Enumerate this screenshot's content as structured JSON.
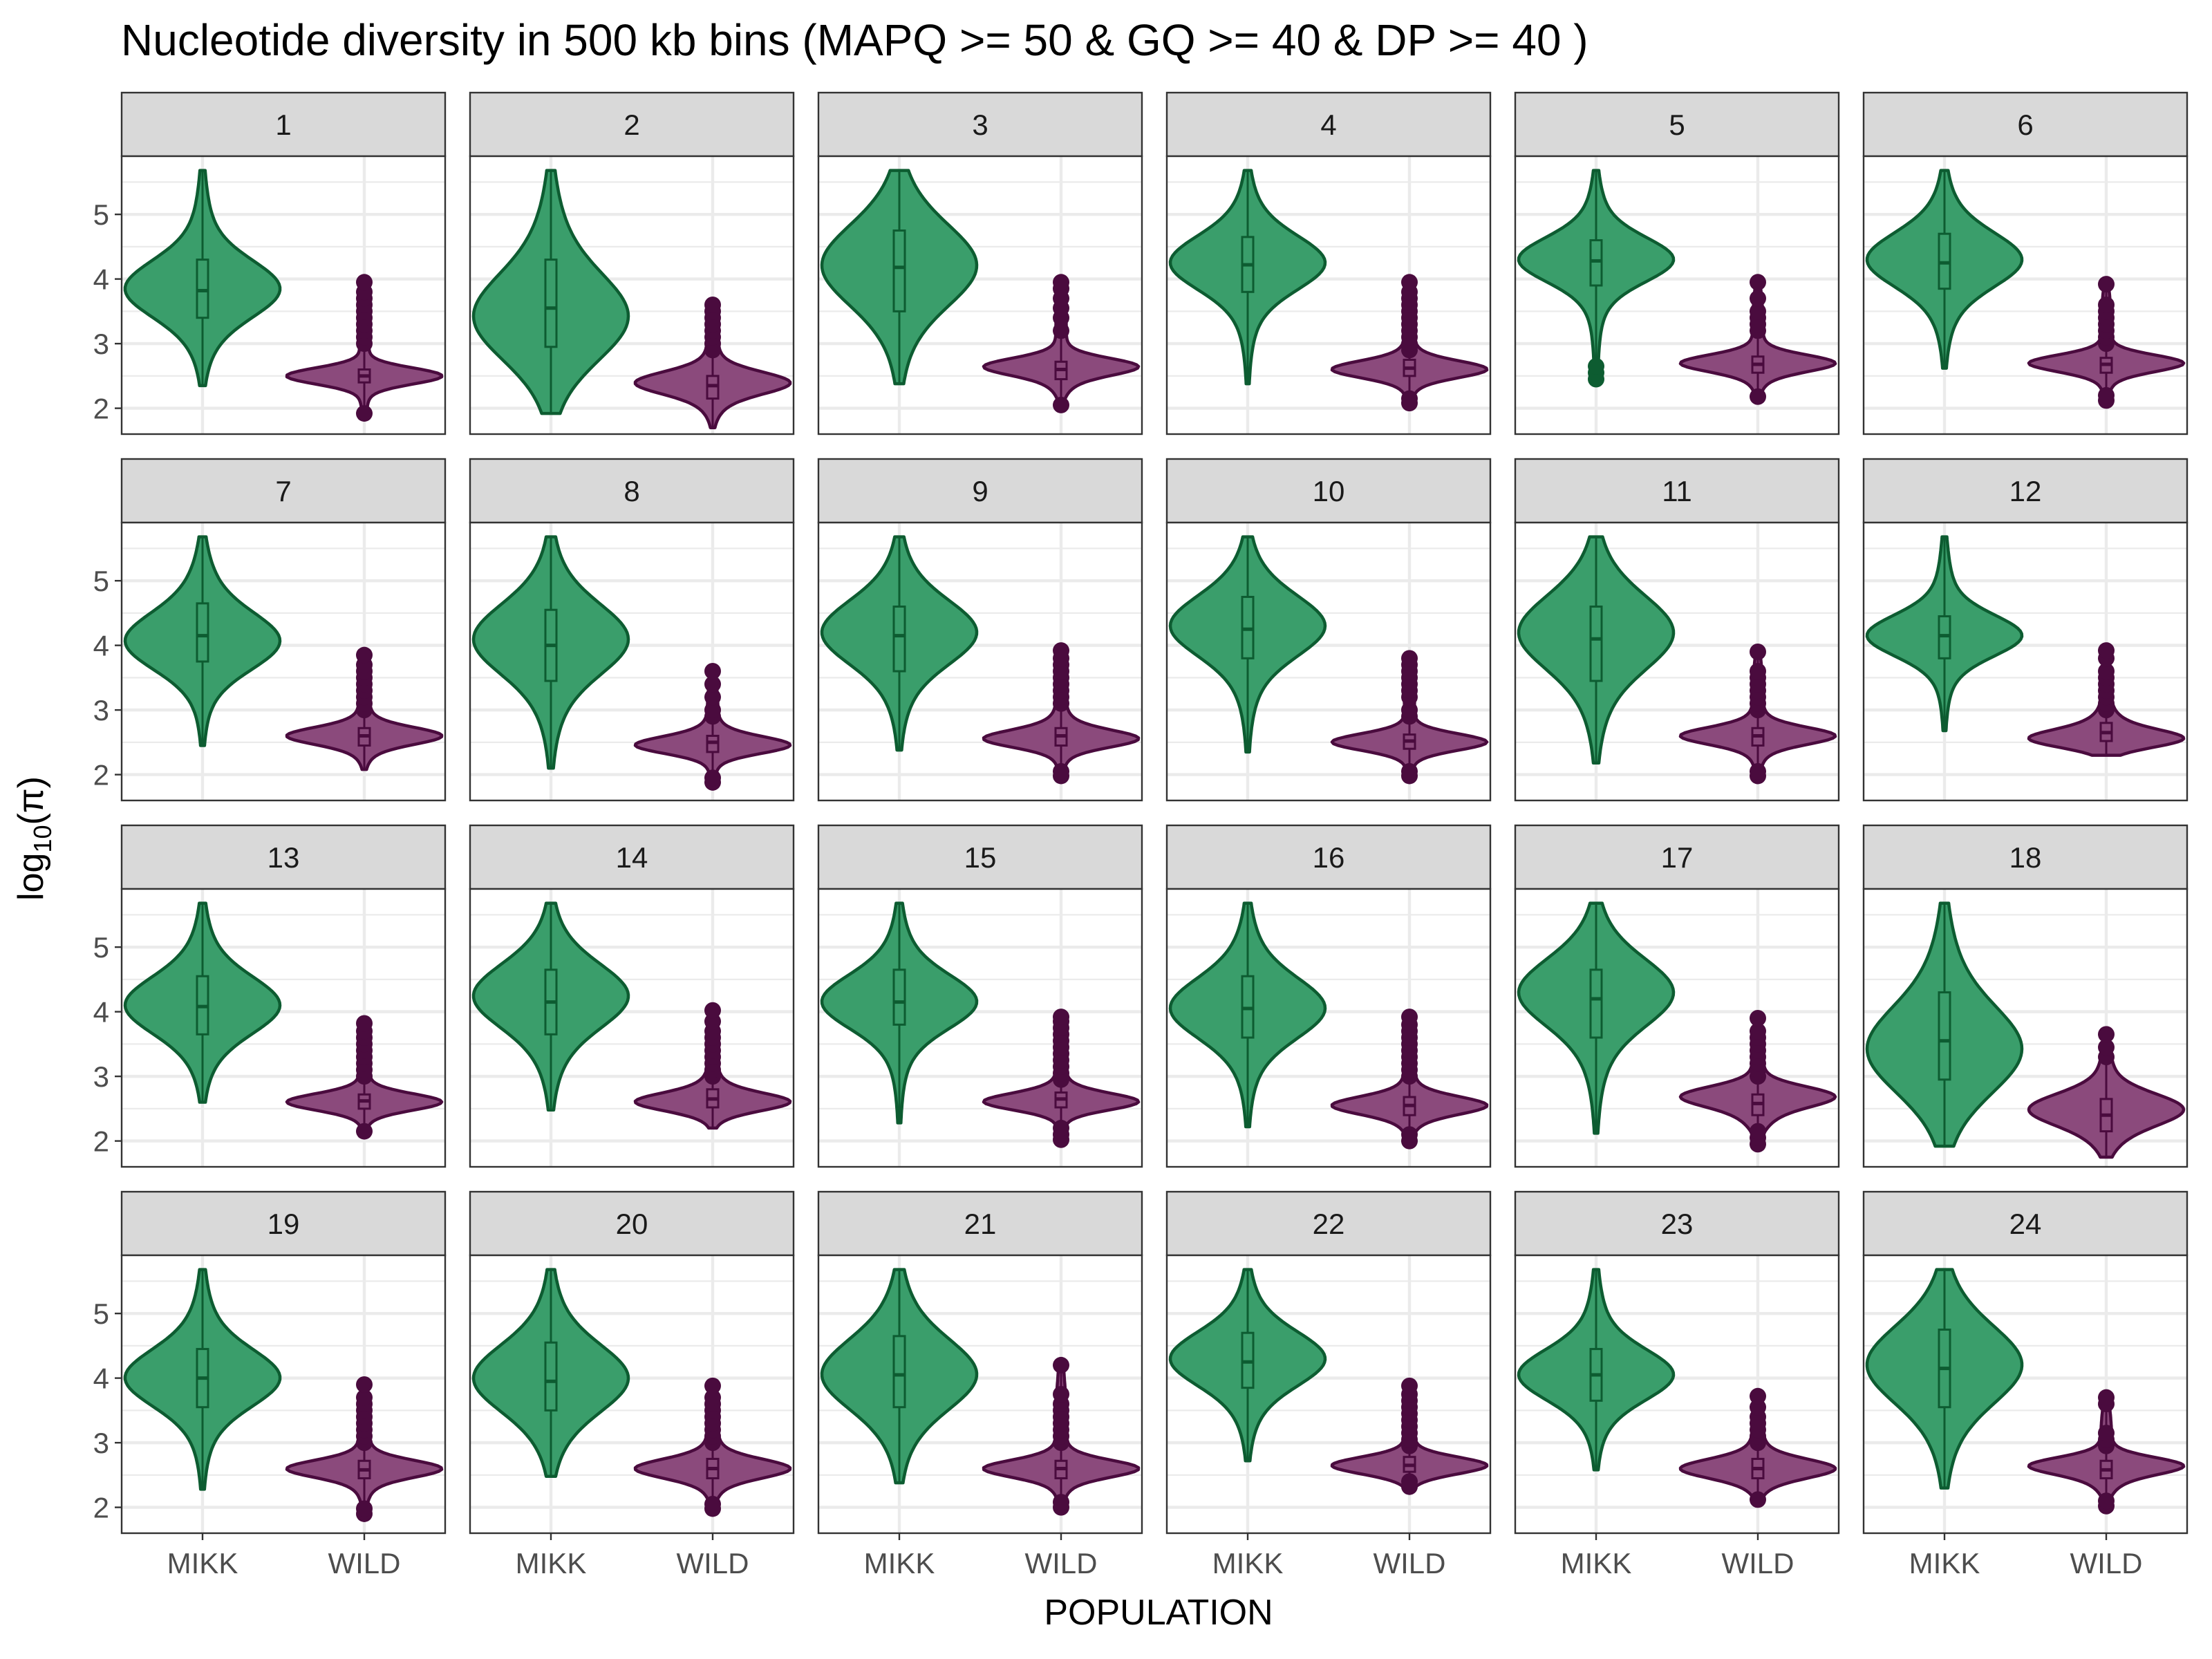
{
  "chart_data": {
    "type": "violin",
    "title": "Nucleotide diversity in 500 kb bins (MAPQ >= 50 & GQ >= 40 & DP >= 40 )",
    "xlabel": "POPULATION",
    "ylabel": "log10(π)",
    "ylabel_parts": {
      "base": "log",
      "subscript": "10",
      "rest": "(π)"
    },
    "categories": [
      "MIKK",
      "WILD"
    ],
    "y_ticks": [
      2,
      3,
      4,
      5
    ],
    "ylim": [
      1.6,
      5.9
    ],
    "grid": true,
    "facet_layout": {
      "rows": 4,
      "cols": 6
    },
    "colors": {
      "MIKK": {
        "fill": "#3a9e6b",
        "line": "#0d5c31"
      },
      "WILD": {
        "fill": "#8b4a7c",
        "line": "#4a0b3e"
      }
    },
    "panels": [
      {
        "label": "1",
        "MIKK": {
          "min": 2.35,
          "q1": 3.4,
          "median": 3.82,
          "q3": 4.3,
          "max": 5.68,
          "mode": 3.85,
          "outliers": []
        },
        "WILD": {
          "min": 1.9,
          "q1": 2.4,
          "median": 2.5,
          "q3": 2.6,
          "max": 3.95,
          "mode": 2.5,
          "outliers": [
            3.0,
            3.1,
            3.2,
            3.3,
            3.4,
            3.5,
            3.6,
            3.7,
            3.8,
            3.95,
            1.92
          ]
        }
      },
      {
        "label": "2",
        "MIKK": {
          "min": 1.92,
          "q1": 2.95,
          "median": 3.55,
          "q3": 4.3,
          "max": 5.68,
          "mode": 3.4,
          "outliers": []
        },
        "WILD": {
          "min": 1.7,
          "q1": 2.15,
          "median": 2.35,
          "q3": 2.5,
          "max": 3.6,
          "mode": 2.4,
          "outliers": [
            2.9,
            3.0,
            3.1,
            3.2,
            3.3,
            3.4,
            3.5,
            3.6
          ]
        }
      },
      {
        "label": "3",
        "MIKK": {
          "min": 2.38,
          "q1": 3.5,
          "median": 4.18,
          "q3": 4.75,
          "max": 5.68,
          "mode": 4.2,
          "outliers": []
        },
        "WILD": {
          "min": 2.05,
          "q1": 2.45,
          "median": 2.6,
          "q3": 2.72,
          "max": 3.95,
          "mode": 2.65,
          "outliers": [
            3.2,
            3.4,
            3.55,
            3.7,
            3.85,
            3.95,
            2.05
          ]
        }
      },
      {
        "label": "4",
        "MIKK": {
          "min": 2.38,
          "q1": 3.8,
          "median": 4.22,
          "q3": 4.65,
          "max": 5.68,
          "mode": 4.25,
          "outliers": []
        },
        "WILD": {
          "min": 2.05,
          "q1": 2.5,
          "median": 2.62,
          "q3": 2.75,
          "max": 3.95,
          "mode": 2.6,
          "outliers": [
            2.9,
            3.0,
            3.1,
            3.2,
            3.3,
            3.4,
            3.5,
            3.6,
            3.7,
            3.8,
            3.95,
            2.08,
            2.15
          ]
        }
      },
      {
        "label": "5",
        "MIKK": {
          "min": 2.42,
          "q1": 3.9,
          "median": 4.28,
          "q3": 4.6,
          "max": 5.68,
          "mode": 4.3,
          "outliers": [
            2.45,
            2.55,
            2.65
          ]
        },
        "WILD": {
          "min": 2.15,
          "q1": 2.55,
          "median": 2.68,
          "q3": 2.8,
          "max": 3.95,
          "mode": 2.7,
          "outliers": [
            3.2,
            3.3,
            3.4,
            3.5,
            3.7,
            3.95,
            2.18
          ]
        }
      },
      {
        "label": "6",
        "MIKK": {
          "min": 2.62,
          "q1": 3.85,
          "median": 4.25,
          "q3": 4.7,
          "max": 5.68,
          "mode": 4.3,
          "outliers": []
        },
        "WILD": {
          "min": 2.1,
          "q1": 2.55,
          "median": 2.68,
          "q3": 2.78,
          "max": 3.92,
          "mode": 2.7,
          "outliers": [
            3.0,
            3.1,
            3.2,
            3.3,
            3.4,
            3.5,
            3.6,
            3.92,
            2.12,
            2.2
          ]
        }
      },
      {
        "label": "7",
        "MIKK": {
          "min": 2.45,
          "q1": 3.75,
          "median": 4.15,
          "q3": 4.65,
          "max": 5.68,
          "mode": 4.05,
          "outliers": []
        },
        "WILD": {
          "min": 2.08,
          "q1": 2.45,
          "median": 2.6,
          "q3": 2.72,
          "max": 3.85,
          "mode": 2.6,
          "outliers": [
            3.0,
            3.1,
            3.2,
            3.3,
            3.4,
            3.5,
            3.6,
            3.7,
            3.85
          ]
        }
      },
      {
        "label": "8",
        "MIKK": {
          "min": 2.1,
          "q1": 3.45,
          "median": 4.0,
          "q3": 4.55,
          "max": 5.68,
          "mode": 4.1,
          "outliers": []
        },
        "WILD": {
          "min": 1.85,
          "q1": 2.35,
          "median": 2.5,
          "q3": 2.6,
          "max": 3.6,
          "mode": 2.45,
          "outliers": [
            2.9,
            3.0,
            3.2,
            3.4,
            3.6,
            1.88,
            1.95
          ]
        }
      },
      {
        "label": "9",
        "MIKK": {
          "min": 2.38,
          "q1": 3.6,
          "median": 4.15,
          "q3": 4.6,
          "max": 5.68,
          "mode": 4.2,
          "outliers": []
        },
        "WILD": {
          "min": 1.95,
          "q1": 2.45,
          "median": 2.6,
          "q3": 2.72,
          "max": 3.92,
          "mode": 2.55,
          "outliers": [
            3.1,
            3.2,
            3.3,
            3.4,
            3.5,
            3.6,
            3.7,
            3.8,
            3.92,
            1.98,
            2.05
          ]
        }
      },
      {
        "label": "10",
        "MIKK": {
          "min": 2.35,
          "q1": 3.8,
          "median": 4.25,
          "q3": 4.75,
          "max": 5.68,
          "mode": 4.3,
          "outliers": []
        },
        "WILD": {
          "min": 1.95,
          "q1": 2.4,
          "median": 2.52,
          "q3": 2.62,
          "max": 3.8,
          "mode": 2.5,
          "outliers": [
            2.9,
            3.0,
            3.2,
            3.3,
            3.4,
            3.5,
            3.6,
            3.7,
            3.8,
            1.98,
            2.05
          ]
        }
      },
      {
        "label": "11",
        "MIKK": {
          "min": 2.18,
          "q1": 3.45,
          "median": 4.1,
          "q3": 4.6,
          "max": 5.68,
          "mode": 4.2,
          "outliers": []
        },
        "WILD": {
          "min": 1.95,
          "q1": 2.45,
          "median": 2.6,
          "q3": 2.72,
          "max": 3.9,
          "mode": 2.6,
          "outliers": [
            3.0,
            3.1,
            3.2,
            3.3,
            3.4,
            3.5,
            3.6,
            3.9,
            1.98,
            2.05
          ]
        }
      },
      {
        "label": "12",
        "MIKK": {
          "min": 2.68,
          "q1": 3.8,
          "median": 4.15,
          "q3": 4.45,
          "max": 5.68,
          "mode": 4.15,
          "outliers": []
        },
        "WILD": {
          "min": 2.3,
          "q1": 2.52,
          "median": 2.65,
          "q3": 2.8,
          "max": 3.92,
          "mode": 2.55,
          "outliers": [
            3.0,
            3.1,
            3.2,
            3.3,
            3.4,
            3.5,
            3.6,
            3.8,
            3.92
          ]
        }
      },
      {
        "label": "13",
        "MIKK": {
          "min": 2.6,
          "q1": 3.65,
          "median": 4.08,
          "q3": 4.55,
          "max": 5.68,
          "mode": 4.1,
          "outliers": []
        },
        "WILD": {
          "min": 2.12,
          "q1": 2.5,
          "median": 2.62,
          "q3": 2.72,
          "max": 3.82,
          "mode": 2.6,
          "outliers": [
            3.0,
            3.1,
            3.2,
            3.3,
            3.4,
            3.5,
            3.6,
            3.7,
            3.82,
            2.15
          ]
        }
      },
      {
        "label": "14",
        "MIKK": {
          "min": 2.48,
          "q1": 3.65,
          "median": 4.15,
          "q3": 4.65,
          "max": 5.68,
          "mode": 4.25,
          "outliers": []
        },
        "WILD": {
          "min": 2.2,
          "q1": 2.52,
          "median": 2.65,
          "q3": 2.8,
          "max": 4.02,
          "mode": 2.6,
          "outliers": [
            3.0,
            3.1,
            3.2,
            3.3,
            3.4,
            3.5,
            3.6,
            3.7,
            3.85,
            4.02
          ]
        }
      },
      {
        "label": "15",
        "MIKK": {
          "min": 2.28,
          "q1": 3.8,
          "median": 4.15,
          "q3": 4.65,
          "max": 5.68,
          "mode": 4.15,
          "outliers": []
        },
        "WILD": {
          "min": 2.0,
          "q1": 2.52,
          "median": 2.65,
          "q3": 2.75,
          "max": 3.92,
          "mode": 2.6,
          "outliers": [
            2.95,
            3.05,
            3.15,
            3.25,
            3.35,
            3.45,
            3.55,
            3.65,
            3.75,
            3.85,
            3.92,
            2.02,
            2.1,
            2.2
          ]
        }
      },
      {
        "label": "16",
        "MIKK": {
          "min": 2.22,
          "q1": 3.6,
          "median": 4.05,
          "q3": 4.55,
          "max": 5.68,
          "mode": 4.05,
          "outliers": []
        },
        "WILD": {
          "min": 1.98,
          "q1": 2.4,
          "median": 2.55,
          "q3": 2.68,
          "max": 3.92,
          "mode": 2.55,
          "outliers": [
            3.0,
            3.1,
            3.2,
            3.3,
            3.4,
            3.5,
            3.6,
            3.7,
            3.8,
            3.92,
            2.0,
            2.1
          ]
        }
      },
      {
        "label": "17",
        "MIKK": {
          "min": 2.12,
          "q1": 3.6,
          "median": 4.2,
          "q3": 4.65,
          "max": 5.68,
          "mode": 4.3,
          "outliers": []
        },
        "WILD": {
          "min": 1.92,
          "q1": 2.4,
          "median": 2.58,
          "q3": 2.72,
          "max": 3.9,
          "mode": 2.7,
          "outliers": [
            3.0,
            3.1,
            3.2,
            3.3,
            3.4,
            3.5,
            3.6,
            3.7,
            3.9,
            1.95,
            2.05,
            2.15
          ]
        }
      },
      {
        "label": "18",
        "MIKK": {
          "min": 1.92,
          "q1": 2.95,
          "median": 3.55,
          "q3": 4.3,
          "max": 5.68,
          "mode": 3.4,
          "outliers": []
        },
        "WILD": {
          "min": 1.75,
          "q1": 2.15,
          "median": 2.4,
          "q3": 2.65,
          "max": 3.65,
          "mode": 2.5,
          "outliers": [
            3.3,
            3.45,
            3.65
          ]
        }
      },
      {
        "label": "19",
        "MIKK": {
          "min": 2.28,
          "q1": 3.55,
          "median": 4.0,
          "q3": 4.45,
          "max": 5.68,
          "mode": 4.0,
          "outliers": []
        },
        "WILD": {
          "min": 1.9,
          "q1": 2.45,
          "median": 2.58,
          "q3": 2.72,
          "max": 3.9,
          "mode": 2.6,
          "outliers": [
            3.0,
            3.1,
            3.2,
            3.3,
            3.4,
            3.5,
            3.6,
            3.7,
            3.9,
            1.9,
            1.98
          ]
        }
      },
      {
        "label": "20",
        "MIKK": {
          "min": 2.48,
          "q1": 3.5,
          "median": 3.95,
          "q3": 4.55,
          "max": 5.68,
          "mode": 4.0,
          "outliers": []
        },
        "WILD": {
          "min": 1.95,
          "q1": 2.45,
          "median": 2.6,
          "q3": 2.75,
          "max": 3.88,
          "mode": 2.6,
          "outliers": [
            3.0,
            3.1,
            3.2,
            3.3,
            3.4,
            3.5,
            3.6,
            3.7,
            3.88,
            1.98,
            2.05
          ]
        }
      },
      {
        "label": "21",
        "MIKK": {
          "min": 2.38,
          "q1": 3.55,
          "median": 4.05,
          "q3": 4.65,
          "max": 5.68,
          "mode": 4.05,
          "outliers": []
        },
        "WILD": {
          "min": 1.98,
          "q1": 2.45,
          "median": 2.6,
          "q3": 2.72,
          "max": 4.2,
          "mode": 2.6,
          "outliers": [
            3.0,
            3.1,
            3.2,
            3.3,
            3.4,
            3.5,
            3.6,
            3.75,
            4.2,
            2.0,
            2.08
          ]
        }
      },
      {
        "label": "22",
        "MIKK": {
          "min": 2.72,
          "q1": 3.85,
          "median": 4.25,
          "q3": 4.7,
          "max": 5.68,
          "mode": 4.3,
          "outliers": []
        },
        "WILD": {
          "min": 2.3,
          "q1": 2.55,
          "median": 2.65,
          "q3": 2.78,
          "max": 3.88,
          "mode": 2.65,
          "outliers": [
            2.95,
            3.05,
            3.15,
            3.25,
            3.35,
            3.45,
            3.55,
            3.65,
            3.75,
            3.88,
            2.32,
            2.4
          ]
        }
      },
      {
        "label": "23",
        "MIKK": {
          "min": 2.58,
          "q1": 3.65,
          "median": 4.05,
          "q3": 4.45,
          "max": 5.68,
          "mode": 4.05,
          "outliers": []
        },
        "WILD": {
          "min": 2.1,
          "q1": 2.45,
          "median": 2.6,
          "q3": 2.75,
          "max": 3.72,
          "mode": 2.6,
          "outliers": [
            3.0,
            3.1,
            3.2,
            3.3,
            3.4,
            3.55,
            3.72,
            2.12
          ]
        }
      },
      {
        "label": "24",
        "MIKK": {
          "min": 2.3,
          "q1": 3.55,
          "median": 4.15,
          "q3": 4.75,
          "max": 5.68,
          "mode": 4.2,
          "outliers": []
        },
        "WILD": {
          "min": 2.0,
          "q1": 2.45,
          "median": 2.58,
          "q3": 2.72,
          "max": 3.7,
          "mode": 2.65,
          "outliers": [
            2.95,
            3.05,
            3.15,
            3.6,
            3.7,
            2.02,
            2.1
          ]
        }
      }
    ]
  }
}
